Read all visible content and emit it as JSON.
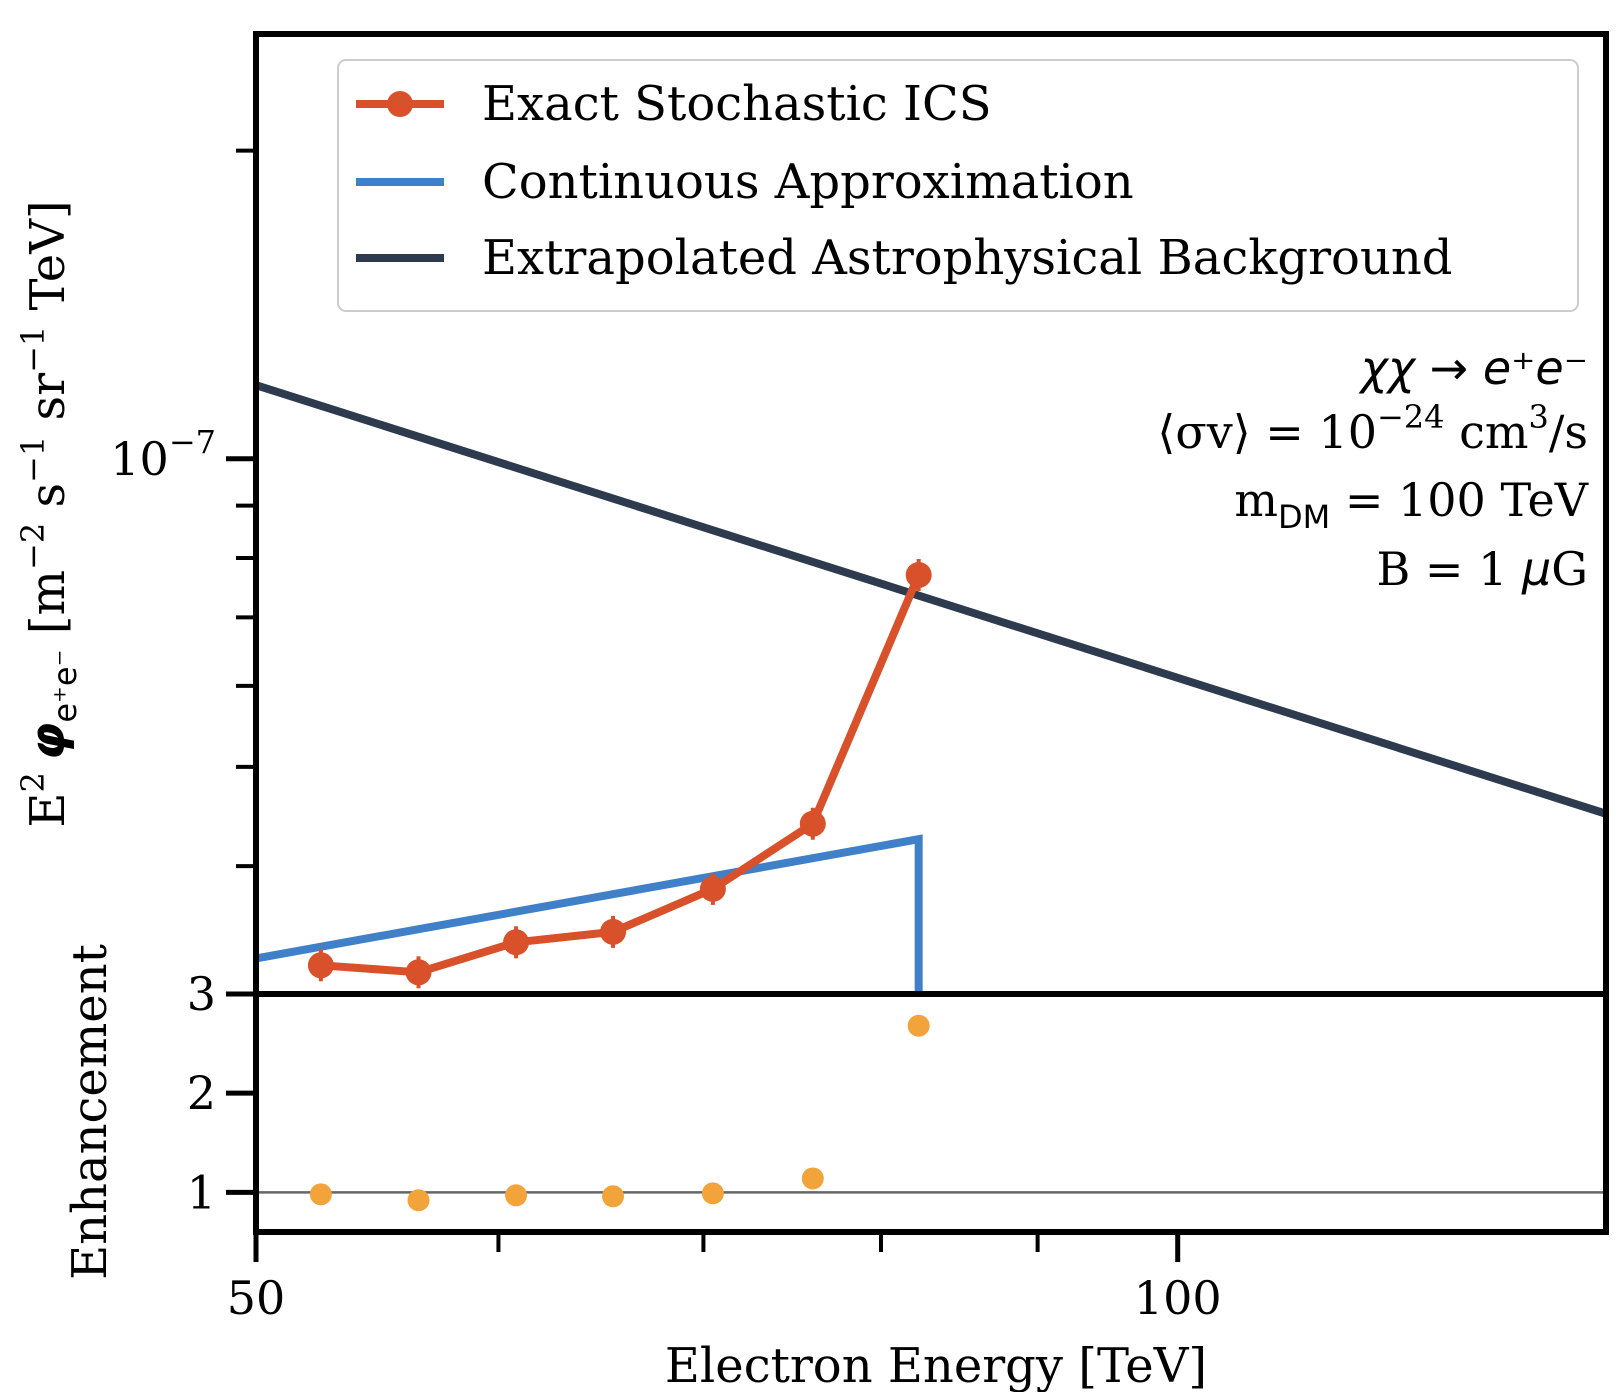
{
  "colors": {
    "stochastic": "#d8512b",
    "continuous": "#4080c8",
    "background": "#2e3b4e",
    "enhancement": "#f2a33a",
    "ref_line": "#666666"
  },
  "legend": [
    {
      "label": "Exact Stochastic ICS",
      "series": "stochastic",
      "marker": "dot"
    },
    {
      "label": "Continuous Approximation",
      "series": "continuous",
      "marker": "none"
    },
    {
      "label": "Extrapolated Astrophysical Background",
      "series": "background",
      "marker": "none"
    }
  ],
  "annotations": {
    "process": "χχ → e⁺e⁻",
    "cross_section_prefix": "⟨σv⟩ = 10",
    "cross_section_exp": "−24",
    "cross_section_unit": " cm",
    "cross_section_unit_exp": "3",
    "cross_section_unit_end": "/s",
    "mass_prefix": "m",
    "mass_sub": "DM",
    "mass_value": " = 100 TeV",
    "bfield_prefix": "B = 1 ",
    "bfield_mu": "μ",
    "bfield_unit": "G"
  },
  "chart_data": [
    {
      "type": "line",
      "panel": "top",
      "ylabel": "E² φe⁺e⁻ [m⁻² s⁻¹ sr⁻¹ TeV]",
      "ylabel_parts": {
        "e": "E",
        "e_sup": "2",
        "phi": "φ",
        "phi_sub": "e⁺e⁻",
        "rest_prefix": " [m",
        "m_exp": "−2",
        "s_part": " s",
        "s_exp": "−1",
        "sr_part": " sr",
        "sr_exp": "−1",
        "rest_suffix": " TeV]"
      },
      "xscale": "log",
      "yscale": "log",
      "xlim": [
        50,
        138
      ],
      "ylim": [
        3e-08,
        2.6e-07
      ],
      "y_major_ticks": [
        {
          "value": 1e-07,
          "base": "10",
          "exp": "−7"
        }
      ],
      "y_minor_ticks": [
        3e-08,
        4e-08,
        5e-08,
        6e-08,
        7e-08,
        8e-08,
        9e-08,
        2e-07
      ],
      "series": [
        {
          "key": "stochastic",
          "name": "Exact Stochastic ICS",
          "x": [
            52.5,
            56.5,
            60.8,
            65.4,
            70.5,
            76.0,
            82.3
          ],
          "y": [
            3.2e-08,
            3.15e-08,
            3.37e-08,
            3.45e-08,
            3.8e-08,
            4.4e-08,
            7.7e-08
          ]
        },
        {
          "key": "continuous",
          "name": "Continuous Approximation",
          "x": [
            50,
            82.3,
            82.3
          ],
          "y": [
            3.25e-08,
            4.25e-08,
            3e-08
          ]
        },
        {
          "key": "background",
          "name": "Extrapolated Astrophysical Background",
          "x": [
            50,
            138
          ],
          "y": [
            1.18e-07,
            4.5e-08
          ]
        }
      ]
    },
    {
      "type": "scatter",
      "panel": "bottom",
      "ylabel": "Enhancement",
      "xlabel": "Electron Energy [TeV]",
      "xscale": "log",
      "xlim": [
        50,
        138
      ],
      "ylim": [
        0.6,
        3.0
      ],
      "y_ticks": [
        1,
        2,
        3
      ],
      "x_major_ticks": [
        50,
        100
      ],
      "x_minor_ticks": [
        60,
        70,
        80,
        90
      ],
      "reference_line": 1,
      "series": [
        {
          "key": "enhancement",
          "name": "Enhancement",
          "x": [
            52.5,
            56.5,
            60.8,
            65.4,
            70.5,
            76.0,
            82.3
          ],
          "y": [
            0.98,
            0.92,
            0.97,
            0.96,
            0.99,
            1.14,
            2.68
          ]
        }
      ]
    }
  ]
}
